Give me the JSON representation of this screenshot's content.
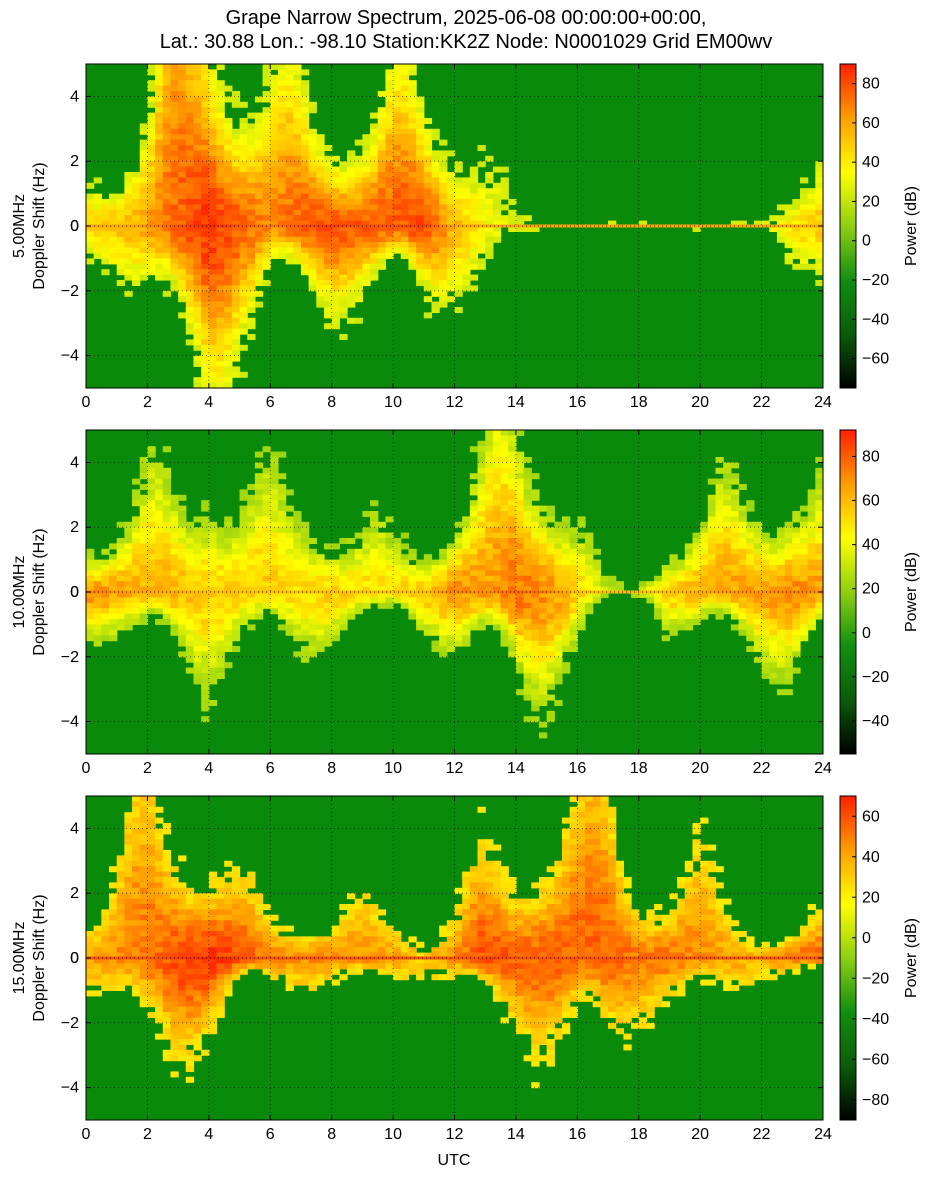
{
  "figure": {
    "title_line1": "Grape Narrow Spectrum, 2025-06-08 00:00:00+00:00,",
    "title_line2": "Lat.: 30.88 Lon.: -98.10 Station:KK2Z Node: N0001029 Grid EM00wv",
    "xlabel": "UTC",
    "colorbar_label": "Power (dB)",
    "colors": {
      "background_green": "#0a8a0a",
      "colormap": [
        "#000000",
        "#0b5c0b",
        "#0f8f0f",
        "#8fcf10",
        "#ffff00",
        "#ff9d00",
        "#ff2000"
      ]
    }
  },
  "chart_data": [
    {
      "type": "heatmap",
      "frequency": "5.00MHz",
      "ylabel": "Doppler Shift (Hz)",
      "xlim": [
        0,
        24
      ],
      "ylim": [
        -5,
        5
      ],
      "xticks": [
        "0",
        "2",
        "4",
        "6",
        "8",
        "10",
        "12",
        "14",
        "16",
        "18",
        "20",
        "22",
        "24"
      ],
      "yticks": [
        "-4",
        "-2",
        "0",
        "2",
        "4"
      ],
      "grid": true,
      "colorbar": {
        "range": [
          -75,
          90
        ],
        "ticks": [
          "-60",
          "-40",
          "-20",
          "0",
          "20",
          "40",
          "60",
          "80"
        ]
      },
      "activity_profile": {
        "hours": [
          0,
          1,
          2,
          3,
          4,
          5,
          6,
          7,
          8,
          9,
          10,
          11,
          12,
          13,
          14,
          15,
          16,
          17,
          18,
          19,
          20,
          21,
          22,
          23,
          24
        ],
        "spread_hz": [
          1.0,
          1.2,
          2.0,
          4.5,
          4.8,
          3.0,
          2.0,
          2.2,
          2.0,
          1.8,
          2.0,
          2.2,
          1.8,
          1.5,
          0.5,
          0.1,
          0.1,
          0.1,
          0.1,
          0.1,
          0.1,
          0.1,
          0.1,
          1.0,
          1.5
        ],
        "peak_power_db": [
          45,
          50,
          60,
          75,
          85,
          75,
          65,
          75,
          80,
          75,
          75,
          80,
          55,
          35,
          20,
          20,
          20,
          20,
          20,
          20,
          20,
          20,
          20,
          40,
          50
        ]
      }
    },
    {
      "type": "heatmap",
      "frequency": "10.00MHz",
      "ylabel": "Doppler Shift (Hz)",
      "xlim": [
        0,
        24
      ],
      "ylim": [
        -5,
        5
      ],
      "xticks": [
        "0",
        "2",
        "4",
        "6",
        "8",
        "10",
        "12",
        "14",
        "16",
        "18",
        "20",
        "22",
        "24"
      ],
      "yticks": [
        "-4",
        "-2",
        "0",
        "2",
        "4"
      ],
      "grid": true,
      "colorbar": {
        "range": [
          -55,
          92
        ],
        "ticks": [
          "-40",
          "-20",
          "0",
          "20",
          "40",
          "60",
          "80"
        ]
      },
      "activity_profile": {
        "hours": [
          0,
          1,
          2,
          3,
          4,
          5,
          6,
          7,
          8,
          9,
          10,
          11,
          12,
          13,
          14,
          15,
          16,
          17,
          18,
          19,
          20,
          21,
          22,
          23,
          24
        ],
        "spread_hz": [
          1.0,
          1.2,
          1.5,
          1.8,
          2.5,
          1.5,
          1.5,
          1.8,
          1.2,
          1.0,
          0.8,
          1.0,
          1.5,
          2.0,
          3.0,
          2.5,
          1.5,
          0.2,
          0.2,
          1.0,
          1.2,
          1.5,
          1.8,
          2.0,
          1.5
        ],
        "peak_power_db": [
          70,
          65,
          60,
          60,
          55,
          55,
          55,
          50,
          55,
          50,
          50,
          55,
          70,
          65,
          75,
          70,
          55,
          25,
          25,
          55,
          60,
          65,
          65,
          70,
          65
        ]
      }
    },
    {
      "type": "heatmap",
      "frequency": "15.00MHz",
      "ylabel": "Doppler Shift (Hz)",
      "xlim": [
        0,
        24
      ],
      "ylim": [
        -5,
        5
      ],
      "xticks": [
        "0",
        "2",
        "4",
        "6",
        "8",
        "10",
        "12",
        "14",
        "16",
        "18",
        "20",
        "22",
        "24"
      ],
      "yticks": [
        "-4",
        "-2",
        "0",
        "2",
        "4"
      ],
      "grid": true,
      "colorbar": {
        "range": [
          -90,
          70
        ],
        "ticks": [
          "-80",
          "-60",
          "-40",
          "-20",
          "0",
          "20",
          "40",
          "60"
        ]
      },
      "activity_profile": {
        "hours": [
          0,
          1,
          2,
          3,
          4,
          5,
          6,
          7,
          8,
          9,
          10,
          11,
          12,
          13,
          14,
          15,
          16,
          17,
          18,
          19,
          20,
          21,
          22,
          23,
          24
        ],
        "spread_hz": [
          0.8,
          1.5,
          3.0,
          2.5,
          2.0,
          1.0,
          0.8,
          0.8,
          0.8,
          0.8,
          0.8,
          0.5,
          0.8,
          1.5,
          1.8,
          2.5,
          2.5,
          3.0,
          1.5,
          1.2,
          1.5,
          1.0,
          0.5,
          0.5,
          0.5
        ],
        "peak_power_db": [
          40,
          45,
          50,
          60,
          65,
          60,
          45,
          45,
          45,
          45,
          40,
          30,
          45,
          60,
          55,
          55,
          55,
          55,
          50,
          50,
          45,
          40,
          35,
          50,
          55
        ]
      }
    }
  ]
}
